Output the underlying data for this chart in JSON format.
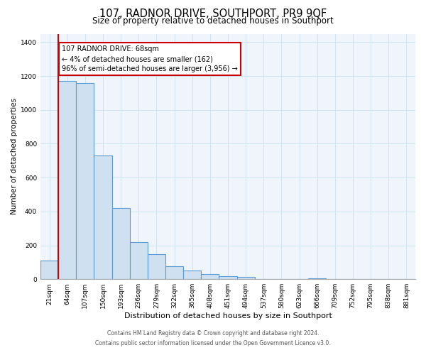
{
  "title": "107, RADNOR DRIVE, SOUTHPORT, PR9 9QF",
  "subtitle": "Size of property relative to detached houses in Southport",
  "xlabel": "Distribution of detached houses by size in Southport",
  "ylabel": "Number of detached properties",
  "bar_labels": [
    "21sqm",
    "64sqm",
    "107sqm",
    "150sqm",
    "193sqm",
    "236sqm",
    "279sqm",
    "322sqm",
    "365sqm",
    "408sqm",
    "451sqm",
    "494sqm",
    "537sqm",
    "580sqm",
    "623sqm",
    "666sqm",
    "709sqm",
    "752sqm",
    "795sqm",
    "838sqm",
    "881sqm"
  ],
  "bar_values": [
    108,
    1170,
    1160,
    730,
    420,
    220,
    148,
    75,
    50,
    30,
    18,
    13,
    0,
    0,
    0,
    5,
    0,
    0,
    0,
    0,
    0
  ],
  "bar_color": "#cfe0f0",
  "bar_edge_color": "#5b9bd5",
  "highlight_color": "#cc0000",
  "ylim": [
    0,
    1450
  ],
  "yticks": [
    0,
    200,
    400,
    600,
    800,
    1000,
    1200,
    1400
  ],
  "annotation_title": "107 RADNOR DRIVE: 68sqm",
  "annotation_line1": "← 4% of detached houses are smaller (162)",
  "annotation_line2": "96% of semi-detached houses are larger (3,956) →",
  "annotation_box_color": "#ffffff",
  "annotation_box_edge": "#cc0000",
  "footnote1": "Contains HM Land Registry data © Crown copyright and database right 2024.",
  "footnote2": "Contains public sector information licensed under the Open Government Licence v3.0.",
  "grid_color": "#d0e4f0",
  "title_fontsize": 10.5,
  "subtitle_fontsize": 8.5,
  "xlabel_fontsize": 8,
  "ylabel_fontsize": 7.5,
  "tick_fontsize": 6.5,
  "footnote_fontsize": 5.5
}
